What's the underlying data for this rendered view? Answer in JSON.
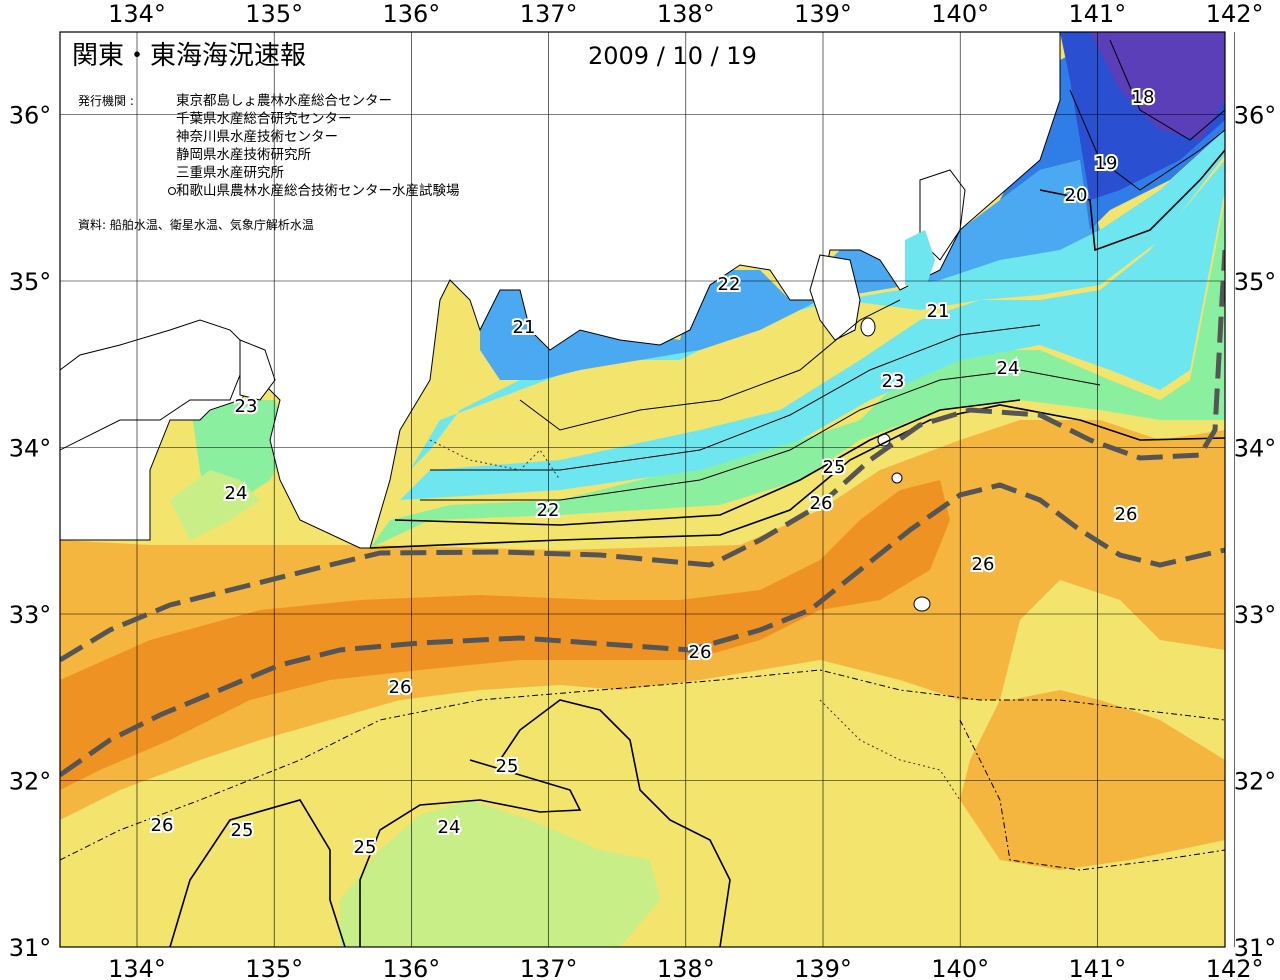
{
  "title": "関東・東海海況速報",
  "date": "2009 / 10 / 19",
  "publishers_label": "発行機関 :",
  "publishers": [
    "東京都島しょ農林水産総合センター",
    "千葉県水産総合研究センター",
    "神奈川県水産技術センター",
    "静岡県水産技術研究所",
    "三重県水産研究所",
    "和歌山県農林水産総合技術センター水産試験場"
  ],
  "source": "資料: 船舶水温、衛星水温、気象庁解析水温",
  "lon_labels": [
    "134°",
    "135°",
    "136°",
    "137°",
    "138°",
    "139°",
    "140°",
    "141°",
    "142°"
  ],
  "lat_labels": [
    "31°",
    "32°",
    "33°",
    "34°",
    "35°",
    "36°"
  ],
  "colors": {
    "c18": "#5a3fb8",
    "c19": "#2a4fd0",
    "c20": "#2f7ee8",
    "c21": "#4aa9f0",
    "c22": "#6ee6f0",
    "c23": "#8af0a0",
    "c24": "#c8ee88",
    "c25": "#f2e46c",
    "c26": "#f5b640",
    "c27": "#ef9224",
    "land": "#ffffff",
    "front": "#555555"
  },
  "contour_labels": [
    {
      "text": "18"
    },
    {
      "text": "19"
    },
    {
      "text": "20"
    },
    {
      "text": "21"
    },
    {
      "text": "21"
    },
    {
      "text": "22"
    },
    {
      "text": "22"
    },
    {
      "text": "23"
    },
    {
      "text": "23"
    },
    {
      "text": "24"
    },
    {
      "text": "24"
    },
    {
      "text": "24"
    },
    {
      "text": "25"
    },
    {
      "text": "25"
    },
    {
      "text": "25"
    },
    {
      "text": "25"
    },
    {
      "text": "26"
    },
    {
      "text": "26"
    },
    {
      "text": "26"
    },
    {
      "text": "26"
    },
    {
      "text": "26"
    },
    {
      "text": "26"
    }
  ]
}
